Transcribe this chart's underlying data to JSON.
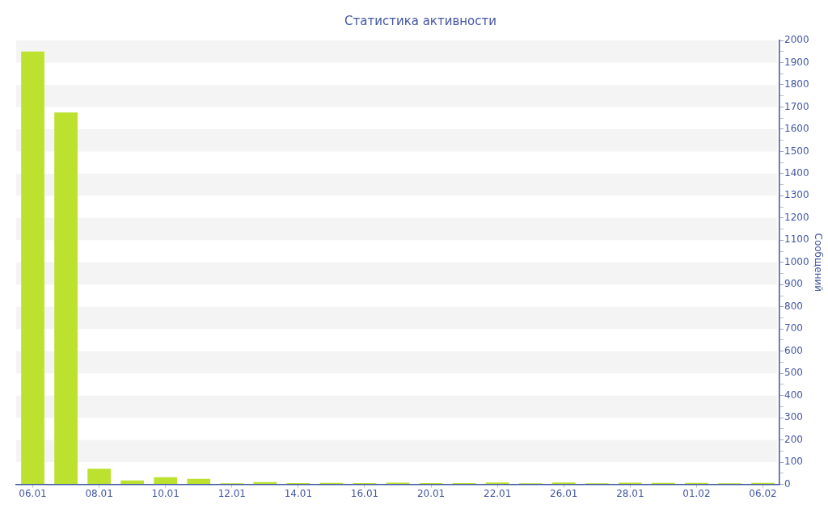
{
  "chart_data": {
    "type": "bar",
    "title": "Статистика активности",
    "ylabel": "Сообщений",
    "categories": [
      "06.01",
      null,
      "08.01",
      null,
      "10.01",
      null,
      "12.01",
      null,
      "14.01",
      null,
      "16.01",
      null,
      "20.01",
      null,
      "22.01",
      null,
      "26.01",
      null,
      "28.01",
      null,
      "01.02",
      null,
      "06.02"
    ],
    "values": [
      1950,
      1675,
      70,
      18,
      32,
      25,
      5,
      10,
      6,
      7,
      6,
      8,
      6,
      6,
      9,
      5,
      9,
      5,
      8,
      7,
      7,
      5,
      7
    ],
    "color": "#bce22f",
    "ylim": [
      0,
      2000
    ],
    "yticks": [
      0,
      {
        "value": 50,
        "label": null
      },
      100,
      {
        "value": 150,
        "label": null
      },
      200,
      {
        "value": 250,
        "label": null
      },
      300,
      {
        "value": 350,
        "label": null
      },
      400,
      {
        "value": 450,
        "label": null
      },
      500,
      {
        "value": 550,
        "label": null
      },
      600,
      {
        "value": 650,
        "label": null
      },
      700,
      {
        "value": 750,
        "label": null
      },
      800,
      {
        "value": 850,
        "label": null
      },
      900,
      {
        "value": 950,
        "label": null
      },
      1000,
      {
        "value": 1050,
        "label": null
      },
      1100,
      {
        "value": 1150,
        "label": null
      },
      1200,
      {
        "value": 1250,
        "label": null
      },
      1300,
      {
        "value": 1350,
        "label": null
      },
      1400,
      {
        "value": 1450,
        "label": null
      },
      1500,
      {
        "value": 1550,
        "label": null
      },
      1600,
      {
        "value": 1650,
        "label": null
      },
      1700,
      {
        "value": 1750,
        "label": null
      },
      1800,
      {
        "value": 1850,
        "label": null
      },
      1900,
      {
        "value": 1950,
        "label": null
      },
      2000
    ],
    "bands": [
      {
        "axis": "y",
        "from": 100,
        "to": 200,
        "color": "#f4f4f4"
      },
      {
        "axis": "y",
        "from": 300,
        "to": 400,
        "color": "#f4f4f4"
      },
      {
        "axis": "y",
        "from": 500,
        "to": 600,
        "color": "#f4f4f4"
      },
      {
        "axis": "y",
        "from": 700,
        "to": 800,
        "color": "#f4f4f4"
      },
      {
        "axis": "y",
        "from": 900,
        "to": 1000,
        "color": "#f4f4f4"
      },
      {
        "axis": "y",
        "from": 1100,
        "to": 1200,
        "color": "#f4f4f4"
      },
      {
        "axis": "y",
        "from": 1300,
        "to": 1400,
        "color": "#f4f4f4"
      },
      {
        "axis": "y",
        "from": 1500,
        "to": 1600,
        "color": "#f4f4f4"
      },
      {
        "axis": "y",
        "from": 1700,
        "to": 1800,
        "color": "#f4f4f4"
      },
      {
        "axis": "y",
        "from": 1900,
        "to": 2000,
        "color": "#f4f4f4"
      }
    ]
  }
}
